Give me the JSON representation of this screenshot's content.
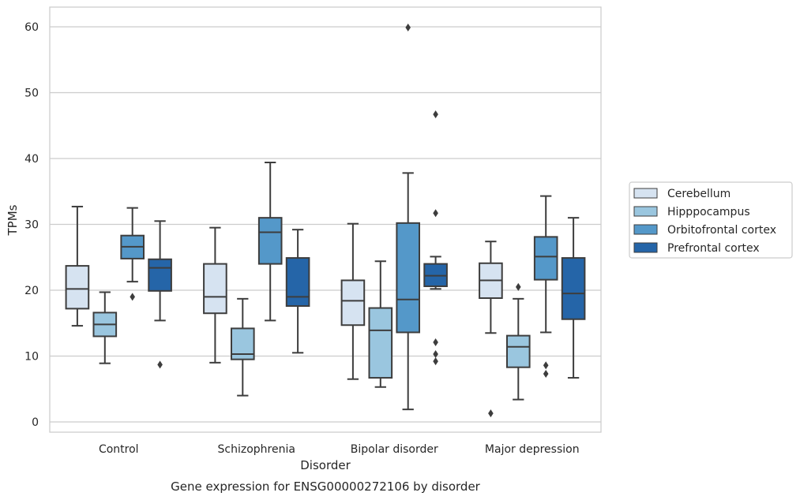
{
  "chart_data": {
    "type": "box",
    "xlabel": "Disorder",
    "ylabel": "TPMs",
    "caption": "Gene expression for ENSG00000272106 by disorder",
    "ylim": [
      -1.5,
      63
    ],
    "yticks": [
      0,
      10,
      20,
      30,
      40,
      50,
      60
    ],
    "grid": "horizontal",
    "legend_position": "right",
    "categories": [
      "Control",
      "Schizophrenia",
      "Bipolar disorder",
      "Major depression"
    ],
    "series": [
      {
        "name": "Cerebellum",
        "color": "#d6e3f1",
        "boxes": [
          {
            "whislo": 14.6,
            "q1": 17.2,
            "med": 20.2,
            "q3": 23.7,
            "whishi": 32.7,
            "fliers": []
          },
          {
            "whislo": 9.0,
            "q1": 16.5,
            "med": 19.0,
            "q3": 24.0,
            "whishi": 29.5,
            "fliers": []
          },
          {
            "whislo": 6.5,
            "q1": 14.7,
            "med": 18.4,
            "q3": 21.5,
            "whishi": 30.1,
            "fliers": []
          },
          {
            "whislo": 13.5,
            "q1": 18.8,
            "med": 21.5,
            "q3": 24.1,
            "whishi": 27.4,
            "fliers": [
              1.3
            ]
          }
        ]
      },
      {
        "name": "Hipppocampus",
        "color": "#9ac6df",
        "boxes": [
          {
            "whislo": 8.9,
            "q1": 13.0,
            "med": 14.8,
            "q3": 16.6,
            "whishi": 19.7,
            "fliers": []
          },
          {
            "whislo": 4.0,
            "q1": 9.5,
            "med": 10.3,
            "q3": 14.2,
            "whishi": 18.7,
            "fliers": []
          },
          {
            "whislo": 5.3,
            "q1": 6.7,
            "med": 13.9,
            "q3": 17.3,
            "whishi": 24.4,
            "fliers": []
          },
          {
            "whislo": 3.4,
            "q1": 8.3,
            "med": 11.4,
            "q3": 13.1,
            "whishi": 18.7,
            "fliers": [
              20.5
            ]
          }
        ]
      },
      {
        "name": "Orbitofrontal cortex",
        "color": "#5498c9",
        "boxes": [
          {
            "whislo": 21.3,
            "q1": 24.8,
            "med": 26.6,
            "q3": 28.3,
            "whishi": 32.5,
            "fliers": [
              19.0
            ]
          },
          {
            "whislo": 15.4,
            "q1": 24.0,
            "med": 28.8,
            "q3": 31.0,
            "whishi": 39.4,
            "fliers": []
          },
          {
            "whislo": 1.9,
            "q1": 13.6,
            "med": 18.6,
            "q3": 30.2,
            "whishi": 37.8,
            "fliers": [
              59.9
            ]
          },
          {
            "whislo": 13.6,
            "q1": 21.6,
            "med": 25.1,
            "q3": 28.1,
            "whishi": 34.3,
            "fliers": [
              8.6,
              7.3
            ]
          }
        ]
      },
      {
        "name": "Prefrontal cortex",
        "color": "#2565a8",
        "boxes": [
          {
            "whislo": 15.4,
            "q1": 19.9,
            "med": 23.4,
            "q3": 24.7,
            "whishi": 30.5,
            "fliers": [
              8.7
            ]
          },
          {
            "whislo": 10.5,
            "q1": 17.6,
            "med": 19.0,
            "q3": 24.9,
            "whishi": 29.2,
            "fliers": []
          },
          {
            "whislo": 20.2,
            "q1": 20.6,
            "med": 22.2,
            "q3": 24.0,
            "whishi": 25.1,
            "fliers": [
              46.7,
              31.7,
              12.1,
              10.3,
              9.2
            ]
          },
          {
            "whislo": 6.7,
            "q1": 15.6,
            "med": 19.5,
            "q3": 24.9,
            "whishi": 31.0,
            "fliers": []
          }
        ]
      }
    ]
  }
}
